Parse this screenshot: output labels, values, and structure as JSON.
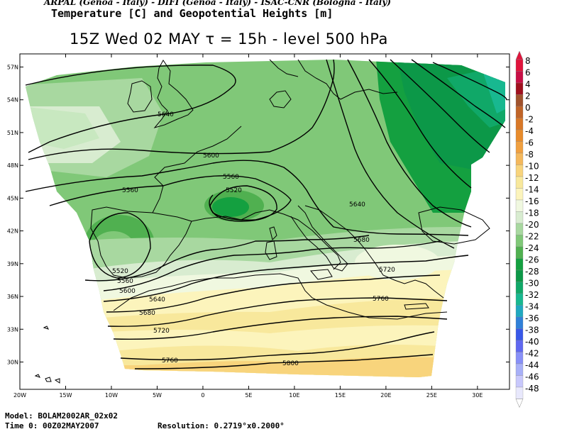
{
  "header": {
    "line1": "ARPAL (Genoa - Italy)  -  DIFI (Genoa - Italy)  -  ISAC-CNR (Bologna - Italy)",
    "line2": "Temperature [C] and Geopotential Heights [m]",
    "line3": "15Z Wed 02 MAY  τ = 15h  -  level 500 hPa"
  },
  "footer": {
    "model": "Model: BOLAM2002AR_02x02",
    "time": "Time 0: 00Z02MAY2007",
    "resolution": "Resolution: 0.2719°x0.2000°"
  },
  "axes": {
    "lat_ticks": [
      "57N",
      "54N",
      "51N",
      "48N",
      "45N",
      "42N",
      "39N",
      "36N",
      "33N",
      "30N"
    ],
    "lat_values": [
      57,
      54,
      51,
      48,
      45,
      42,
      39,
      36,
      33,
      30
    ],
    "lon_ticks": [
      "20W",
      "15W",
      "10W",
      "5W",
      "0",
      "5E",
      "10E",
      "15E",
      "20E",
      "25E",
      "30E"
    ],
    "lon_values": [
      -20,
      -15,
      -10,
      -5,
      0,
      5,
      10,
      15,
      20,
      25,
      30
    ],
    "lon_range": [
      -20,
      33.5
    ],
    "lat_range": [
      27.5,
      58.2
    ]
  },
  "colorbar": {
    "labels": [
      "8",
      "6",
      "4",
      "2",
      "0",
      "-2",
      "-4",
      "-6",
      "-8",
      "-10",
      "-12",
      "-14",
      "-16",
      "-18",
      "-20",
      "-22",
      "-24",
      "-26",
      "-28",
      "-30",
      "-32",
      "-34",
      "-36",
      "-38",
      "-40",
      "-42",
      "-44",
      "-46",
      "-48"
    ],
    "colors": [
      "#e0143c",
      "#c80f46",
      "#a0101e",
      "#a0522d",
      "#c06428",
      "#d87828",
      "#e88c2c",
      "#f0a040",
      "#f4b85c",
      "#f8d47c",
      "#f8e89c",
      "#fcf4bc",
      "#f0f8e0",
      "#d8ecd0",
      "#a8d8a0",
      "#80c878",
      "#50b050",
      "#14a040",
      "#0c9848",
      "#10a868",
      "#18b890",
      "#20a8c0",
      "#3080d8",
      "#3858e8",
      "#6068f0",
      "#8890f8",
      "#a8b0f8",
      "#c8c8fc",
      "#e8e8fc"
    ]
  },
  "contour_labels": [
    "5640",
    "5600",
    "5560",
    "5520",
    "5580",
    "5520",
    "5560",
    "5600",
    "5640",
    "5680",
    "5720",
    "5760",
    "5640",
    "5680",
    "5720",
    "5760",
    "5800"
  ]
}
